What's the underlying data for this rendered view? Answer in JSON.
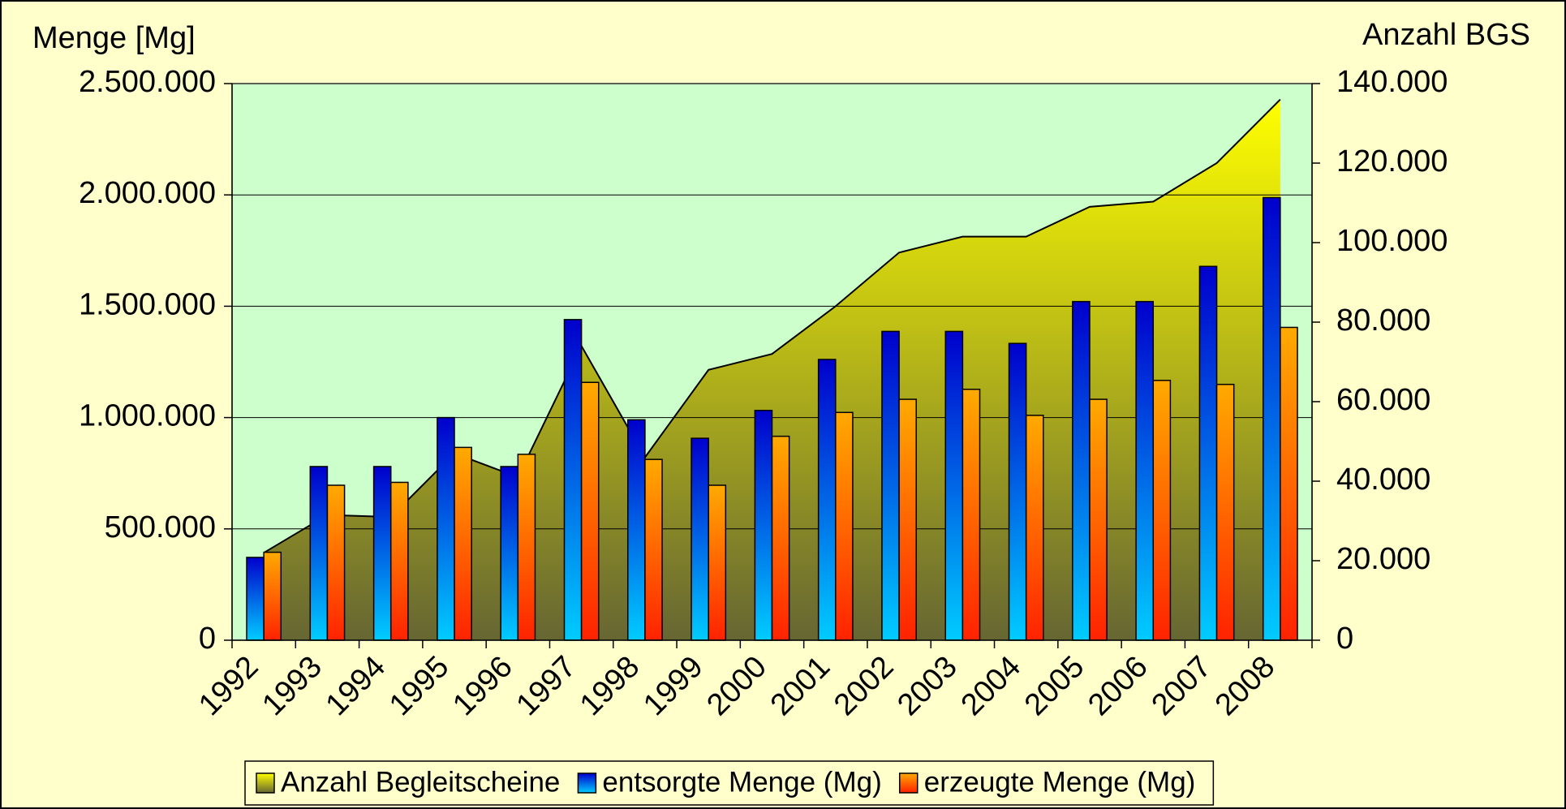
{
  "chart_data": {
    "type": "bar",
    "y_label": "Menge [Mg]",
    "y2_label": "Anzahl BGS",
    "categories": [
      "1992",
      "1993",
      "1994",
      "1995",
      "1996",
      "1997",
      "1998",
      "1999",
      "2000",
      "2001",
      "2002",
      "2003",
      "2004",
      "2005",
      "2006",
      "2007",
      "2008"
    ],
    "series": [
      {
        "name": "Anzahl Begleitscheine",
        "type": "area",
        "axis": "y2",
        "color": "#808000",
        "gradient": [
          "#ffff00",
          "#666633"
        ],
        "values": [
          22000,
          31500,
          31000,
          47000,
          41000,
          74000,
          46000,
          68000,
          72000,
          84000,
          97500,
          101500,
          101500,
          109000,
          110300,
          120000,
          136000
        ]
      },
      {
        "name": "entsorgte Menge (Mg)",
        "type": "bar",
        "color": "#0033ff",
        "gradient": [
          "#0000cc",
          "#00ccff"
        ],
        "values": [
          372000,
          780000,
          780000,
          1000000,
          780000,
          1440000,
          990000,
          907000,
          1032000,
          1261000,
          1387000,
          1387000,
          1333000,
          1521000,
          1521000,
          1679000,
          1988000
        ]
      },
      {
        "name": "erzeugte Menge (Mg)",
        "type": "bar",
        "color": "#ff8800",
        "gradient": [
          "#ffaa00",
          "#ff2200"
        ],
        "values": [
          395000,
          696000,
          709000,
          866000,
          835000,
          1158000,
          812000,
          696000,
          916000,
          1023000,
          1082000,
          1127000,
          1010000,
          1082000,
          1167000,
          1149000,
          1405000
        ]
      }
    ],
    "ylim": [
      0,
      2500000
    ],
    "yticks": [
      0,
      {
        "value": 500000,
        "label": "500.000"
      },
      {
        "value": 1000000,
        "label": "1.000.000"
      },
      {
        "value": 1500000,
        "label": "1.500.000"
      },
      {
        "value": 2000000,
        "label": "2.000.000"
      },
      {
        "value": 2500000,
        "label": "2.500.000"
      }
    ],
    "y2lim": [
      0,
      140000
    ],
    "y2ticks": [
      0,
      {
        "value": 20000,
        "label": "20.000"
      },
      {
        "value": 40000,
        "label": "40.000"
      },
      {
        "value": 60000,
        "label": "60.000"
      },
      {
        "value": 80000,
        "label": "80.000"
      },
      {
        "value": 100000,
        "label": "100.000"
      },
      {
        "value": 120000,
        "label": "120.000"
      },
      {
        "value": 140000,
        "label": "140.000"
      }
    ],
    "grid": true,
    "legend": "bottom"
  }
}
